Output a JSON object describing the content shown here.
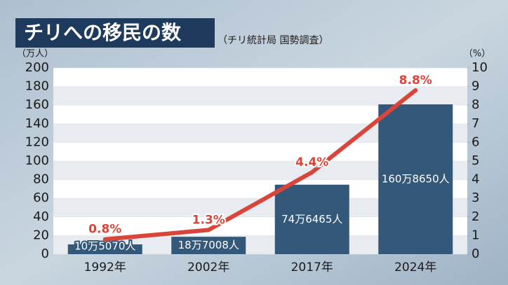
{
  "chart_data": {
    "type": "bar",
    "title": "チリへの移民の数",
    "subtitle": "（チリ統計局 国勢調査）",
    "y_label": "（万人）",
    "y2_label": "（%）",
    "categories": [
      "1992年",
      "2002年",
      "2017年",
      "2024年"
    ],
    "series": [
      {
        "color": "#34587a",
        "values": [
          10.507,
          18.7008,
          74.6465,
          160.865
        ],
        "value_labels": [
          "10万5070人",
          "18万7008人",
          "74万6465人",
          "160万8650人"
        ]
      },
      {
        "type": "line",
        "axis": "y2",
        "color": "#d9453a",
        "values": [
          0.8,
          1.3,
          4.4,
          8.8
        ],
        "value_labels": [
          "0.8%",
          "1.3%",
          "4.4%",
          "8.8%"
        ]
      }
    ],
    "ylim": [
      0,
      200
    ],
    "yticks": [
      0,
      20,
      40,
      60,
      80,
      100,
      120,
      140,
      160,
      180,
      200
    ],
    "y2lim": [
      0,
      10
    ],
    "y2ticks": [
      0,
      1,
      2,
      3,
      4,
      5,
      6,
      7,
      8,
      9,
      10
    ],
    "grid": true
  }
}
